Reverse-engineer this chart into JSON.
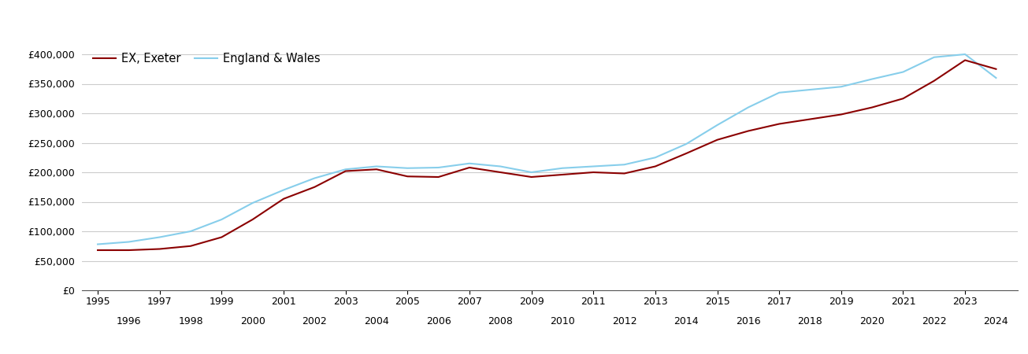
{
  "exeter_years": [
    1995,
    1996,
    1997,
    1998,
    1999,
    2000,
    2001,
    2002,
    2003,
    2004,
    2005,
    2006,
    2007,
    2008,
    2009,
    2010,
    2011,
    2012,
    2013,
    2014,
    2015,
    2016,
    2017,
    2018,
    2019,
    2020,
    2021,
    2022,
    2023,
    2024
  ],
  "exeter_values": [
    68000,
    68000,
    70000,
    75000,
    90000,
    120000,
    155000,
    175000,
    202000,
    205000,
    193000,
    192000,
    208000,
    200000,
    192000,
    196000,
    200000,
    198000,
    210000,
    232000,
    255000,
    270000,
    282000,
    290000,
    298000,
    310000,
    325000,
    355000,
    390000,
    375000
  ],
  "ew_years": [
    1995,
    1996,
    1997,
    1998,
    1999,
    2000,
    2001,
    2002,
    2003,
    2004,
    2005,
    2006,
    2007,
    2008,
    2009,
    2010,
    2011,
    2012,
    2013,
    2014,
    2015,
    2016,
    2017,
    2018,
    2019,
    2020,
    2021,
    2022,
    2023,
    2024
  ],
  "ew_values": [
    78000,
    82000,
    90000,
    100000,
    120000,
    148000,
    170000,
    190000,
    205000,
    210000,
    207000,
    208000,
    215000,
    210000,
    200000,
    207000,
    210000,
    213000,
    225000,
    248000,
    280000,
    310000,
    335000,
    340000,
    345000,
    358000,
    370000,
    395000,
    400000,
    360000
  ],
  "exeter_color": "#8B0000",
  "ew_color": "#87CEEB",
  "exeter_label": "EX, Exeter",
  "ew_label": "England & Wales",
  "ylim": [
    0,
    420000
  ],
  "yticks": [
    0,
    50000,
    100000,
    150000,
    200000,
    250000,
    300000,
    350000,
    400000
  ],
  "ytick_labels": [
    "£0",
    "£50,000",
    "£100,000",
    "£150,000",
    "£200,000",
    "£250,000",
    "£300,000",
    "£350,000",
    "£400,000"
  ],
  "xticks_row1": [
    1995,
    1997,
    1999,
    2001,
    2003,
    2005,
    2007,
    2009,
    2011,
    2013,
    2015,
    2017,
    2019,
    2021,
    2023
  ],
  "xticks_row2": [
    1996,
    1998,
    2000,
    2002,
    2004,
    2006,
    2008,
    2010,
    2012,
    2014,
    2016,
    2018,
    2020,
    2022,
    2024
  ],
  "xlim": [
    1994.5,
    2024.7
  ],
  "line_width": 1.5,
  "bg_color": "#ffffff",
  "grid_color": "#cccccc",
  "legend_fontsize": 10.5,
  "tick_fontsize": 9.0
}
